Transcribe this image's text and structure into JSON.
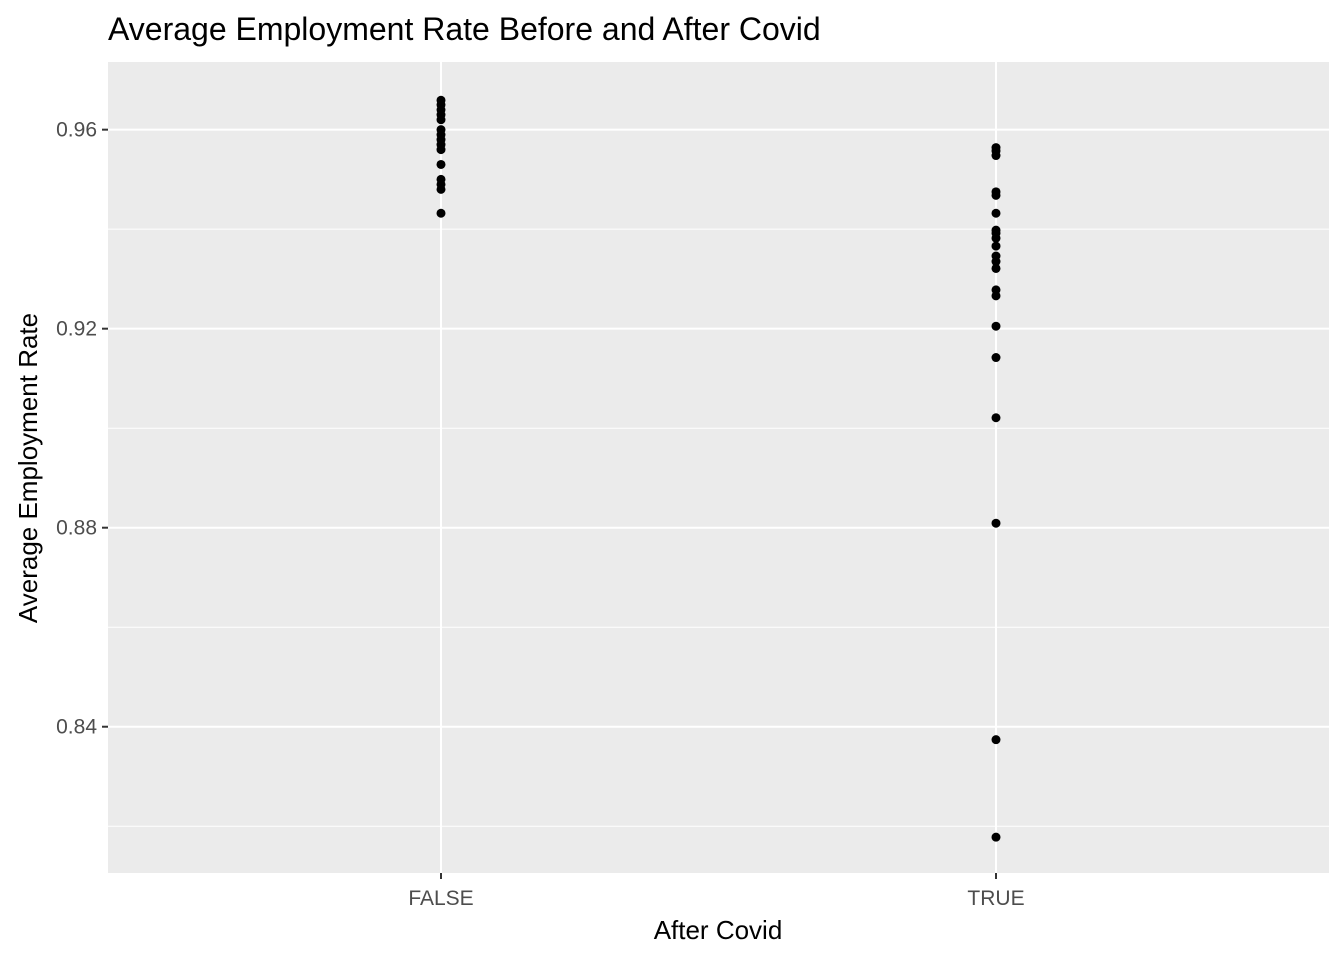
{
  "chart_data": {
    "type": "scatter",
    "title": "Average Employment Rate Before and After Covid",
    "xlabel": "After Covid",
    "ylabel": "Average Employment Rate",
    "categories": [
      "FALSE",
      "TRUE"
    ],
    "ylim": [
      0.8106,
      0.9736
    ],
    "yticks": [
      0.84,
      0.88,
      0.92,
      0.96
    ],
    "yticks_minor": [
      0.82,
      0.86,
      0.9,
      0.94
    ],
    "yticklabels": [
      "0.84",
      "0.88",
      "0.92",
      "0.96"
    ],
    "grid": true,
    "panel_background": "#ebebeb",
    "grid_color": "#ffffff",
    "point_color": "#000000",
    "series": [
      {
        "category": "FALSE",
        "values": [
          0.9659,
          0.965,
          0.964,
          0.963,
          0.962,
          0.96,
          0.959,
          0.958,
          0.957,
          0.956,
          0.953,
          0.95,
          0.949,
          0.948,
          0.9432
        ]
      },
      {
        "category": "TRUE",
        "values": [
          0.9564,
          0.9557,
          0.9548,
          0.9475,
          0.9468,
          0.9432,
          0.9398,
          0.9392,
          0.9382,
          0.9366,
          0.9346,
          0.9335,
          0.9321,
          0.9278,
          0.9266,
          0.9205,
          0.9142,
          0.9021,
          0.8809,
          0.8374,
          0.8178
        ]
      }
    ]
  }
}
